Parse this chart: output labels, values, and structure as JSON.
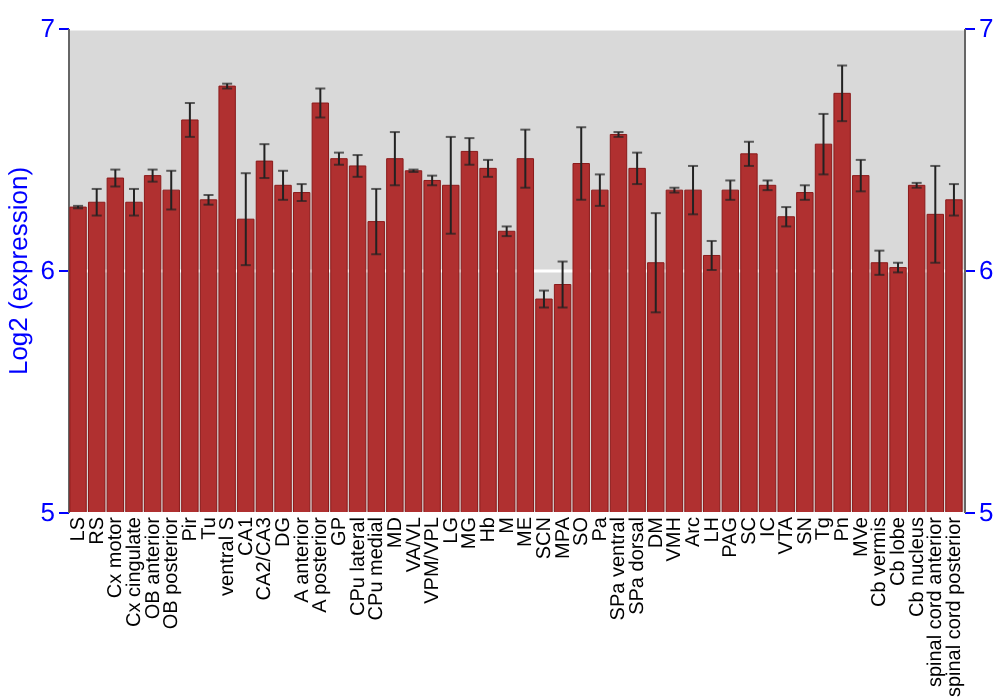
{
  "chart_data": {
    "type": "bar",
    "ylabel": "Log2 (expression)",
    "categories": [
      "LS",
      "RS",
      "Cx motor",
      "Cx cingulate",
      "OB anterior",
      "OB posterior",
      "Pir",
      "Tu",
      "ventral S",
      "CA1",
      "CA2/CA3",
      "DG",
      "A anterior",
      "A posterior",
      "GP",
      "CPu lateral",
      "CPu medial",
      "MD",
      "VA/VL",
      "VPM/VPL",
      "LG",
      "MG",
      "Hb",
      "M",
      "ME",
      "SCN",
      "MPA",
      "SO",
      "Pa",
      "SPa ventral",
      "SPa dorsal",
      "DM",
      "VMH",
      "Arc",
      "LH",
      "PAG",
      "SC",
      "IC",
      "VTA",
      "SN",
      "Tg",
      "Pn",
      "MVe",
      "Cb vermis",
      "Cb lobe",
      "Cb nucleus",
      "spinal cord anterior",
      "spinal cord posterior"
    ],
    "values": [
      6.26,
      6.28,
      6.38,
      6.28,
      6.39,
      6.33,
      6.62,
      6.29,
      6.76,
      6.21,
      6.45,
      6.35,
      6.32,
      6.69,
      6.46,
      6.43,
      6.2,
      6.46,
      6.41,
      6.37,
      6.35,
      6.49,
      6.42,
      6.16,
      6.46,
      5.88,
      5.94,
      6.44,
      6.33,
      6.56,
      6.42,
      6.03,
      6.33,
      6.33,
      6.06,
      6.33,
      6.48,
      6.35,
      6.22,
      6.32,
      6.52,
      6.73,
      6.39,
      6.03,
      6.01,
      6.35,
      6.23,
      6.29
    ],
    "errors": [
      0.005,
      0.055,
      0.035,
      0.055,
      0.025,
      0.08,
      0.07,
      0.02,
      0.01,
      0.19,
      0.07,
      0.06,
      0.035,
      0.06,
      0.025,
      0.045,
      0.135,
      0.11,
      0.005,
      0.02,
      0.2,
      0.055,
      0.035,
      0.02,
      0.12,
      0.035,
      0.095,
      0.15,
      0.065,
      0.01,
      0.065,
      0.205,
      0.01,
      0.1,
      0.06,
      0.04,
      0.05,
      0.02,
      0.04,
      0.03,
      0.125,
      0.115,
      0.065,
      0.05,
      0.02,
      0.01,
      0.2,
      0.065
    ],
    "color": "#b03030",
    "ylim": [
      5,
      7
    ],
    "yticks": [
      5,
      6,
      7
    ],
    "y2lim": [
      5,
      7
    ],
    "y2ticks": [
      5,
      6,
      7
    ],
    "grid": "y"
  }
}
